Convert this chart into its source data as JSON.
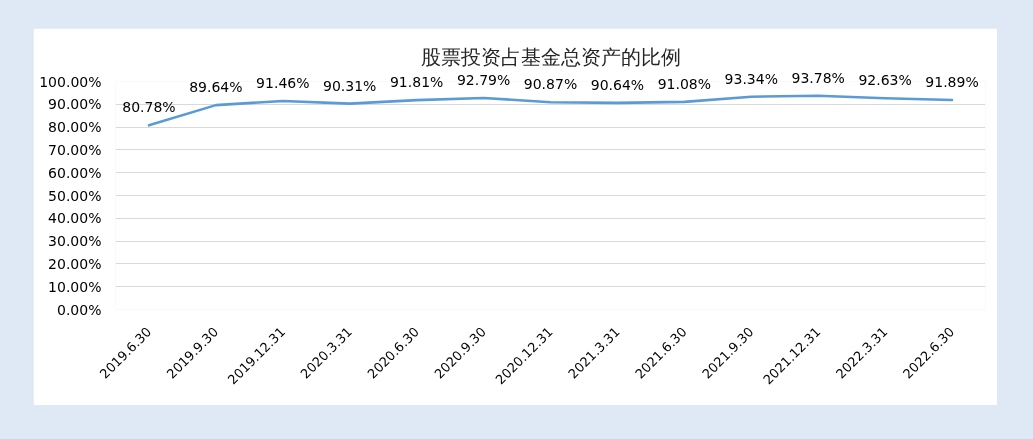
{
  "chart_data": {
    "type": "line",
    "title": "股票投资占基金总资产的比例",
    "categories": [
      "2019.6.30",
      "2019.9.30",
      "2019.12.31",
      "2020.3.31",
      "2020.6.30",
      "2020.9.30",
      "2020.12.31",
      "2021.3.31",
      "2021.6.30",
      "2021.9.30",
      "2021.12.31",
      "2022.3.31",
      "2022.6.30"
    ],
    "series": [
      {
        "color": "#5b9bd5",
        "values": [
          80.78,
          89.64,
          91.46,
          90.31,
          91.81,
          92.79,
          90.87,
          90.64,
          91.08,
          93.34,
          93.78,
          92.63,
          91.89
        ],
        "value_labels": [
          "80.78%",
          "89.64%",
          "91.46%",
          "90.31%",
          "91.81%",
          "92.79%",
          "90.87%",
          "90.64%",
          "91.08%",
          "93.34%",
          "93.78%",
          "92.63%",
          "91.89%"
        ]
      }
    ],
    "ylim": [
      0,
      100
    ],
    "yticks": [
      {
        "value": 0,
        "label": "0.00%"
      },
      {
        "value": 10,
        "label": "10.00%"
      },
      {
        "value": 20,
        "label": "20.00%"
      },
      {
        "value": 30,
        "label": "30.00%"
      },
      {
        "value": 40,
        "label": "40.00%"
      },
      {
        "value": 50,
        "label": "50.00%"
      },
      {
        "value": 60,
        "label": "60.00%"
      },
      {
        "value": 70,
        "label": "70.00%"
      },
      {
        "value": 80,
        "label": "80.00%"
      },
      {
        "value": 90,
        "label": "90.00%"
      },
      {
        "value": 100,
        "label": "100.00%"
      }
    ],
    "grid": "y",
    "line_style": "solid"
  }
}
